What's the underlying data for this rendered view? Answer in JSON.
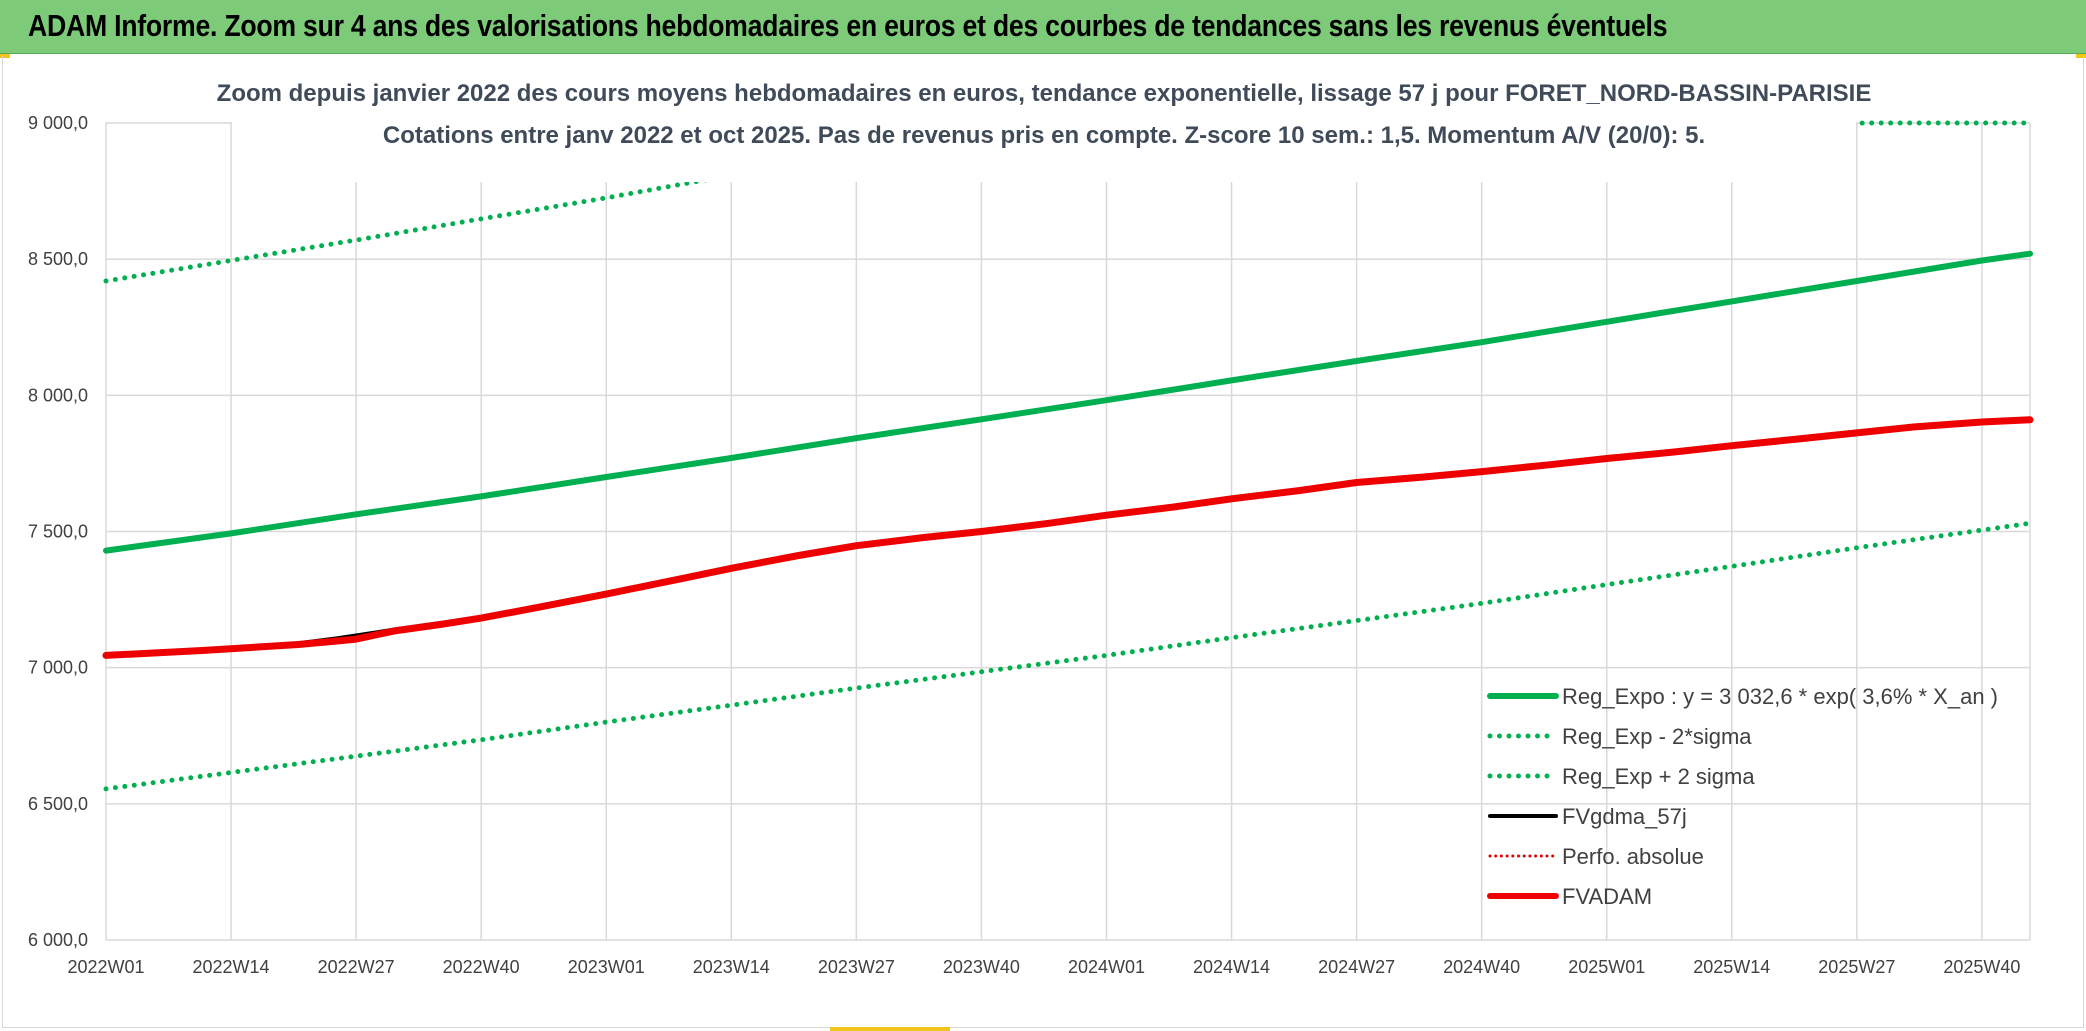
{
  "banner": {
    "title": "ADAM Informe. Zoom sur 4 ans des valorisations hebdomadaires en euros et des courbes de tendances sans les revenus éventuels"
  },
  "chart_data": {
    "type": "line",
    "title": "Zoom depuis janvier 2022 des cours moyens hebdomadaires en euros, tendance exponentielle, lissage 57 j pour FORET_NORD-BASSIN-PARISIE",
    "subtitle": "Cotations entre janv 2022 et oct 2025. Pas de revenus pris en compte. Z-score 10 sem.: 1,5. Momentum A/V (20/0): 5.",
    "xlabel": "",
    "ylabel": "",
    "ylim": [
      6000,
      9000
    ],
    "yticks": [
      "6 000,0",
      "6 500,0",
      "7 000,0",
      "7 500,0",
      "8 000,0",
      "8 500,0",
      "9 000,0"
    ],
    "ytick_values": [
      6000,
      6500,
      7000,
      7500,
      8000,
      8500,
      9000
    ],
    "categories": [
      "2022W01",
      "2022W14",
      "2022W27",
      "2022W40",
      "2023W01",
      "2023W14",
      "2023W27",
      "2023W40",
      "2024W01",
      "2024W14",
      "2024W27",
      "2024W40",
      "2025W01",
      "2025W14",
      "2025W27",
      "2025W40"
    ],
    "x_extent_weeks": 200,
    "grid": true,
    "legend_position": "bottom-right",
    "series": [
      {
        "name": "Reg_Expo : y = 3 032,6 * exp( 3,6% *  X_an )",
        "style": "solid",
        "color": "#00b050",
        "width": 6,
        "x": [
          0,
          13,
          26,
          39,
          52,
          65,
          78,
          91,
          104,
          117,
          130,
          143,
          156,
          169,
          182,
          195,
          200
        ],
        "values": [
          7430,
          7493,
          7563,
          7629,
          7700,
          7770,
          7843,
          7912,
          7982,
          8055,
          8126,
          8195,
          8270,
          8345,
          8420,
          8495,
          8520
        ]
      },
      {
        "name": "Reg_Exp - 2*sigma",
        "style": "dotted",
        "color": "#00b050",
        "width": 5,
        "x": [
          0,
          13,
          26,
          39,
          52,
          65,
          78,
          91,
          104,
          117,
          130,
          143,
          156,
          169,
          182,
          195,
          200
        ],
        "values": [
          6555,
          6615,
          6675,
          6735,
          6800,
          6862,
          6925,
          6985,
          7045,
          7110,
          7173,
          7236,
          7305,
          7372,
          7440,
          7505,
          7530
        ]
      },
      {
        "name": "Reg_Exp + 2 sigma",
        "style": "dotted",
        "color": "#00b050",
        "width": 5,
        "x": [
          0,
          13,
          26,
          39,
          52,
          65,
          72,
          183,
          200
        ],
        "values": [
          8420,
          8495,
          8570,
          8648,
          8725,
          8808,
          8855,
          9000,
          9000
        ]
      },
      {
        "name": "FVgdma_57j",
        "style": "solid",
        "color": "#000000",
        "width": 4,
        "x": [
          0,
          10,
          20,
          24,
          26,
          30,
          35,
          39,
          45,
          52,
          60,
          65,
          72,
          78,
          85,
          91,
          98,
          104,
          111,
          117,
          124,
          130,
          137,
          143,
          150,
          156,
          163,
          169,
          176,
          182,
          188,
          195,
          200
        ],
        "values": [
          7045,
          7065,
          7090,
          7108,
          7118,
          7140,
          7165,
          7185,
          7225,
          7272,
          7330,
          7368,
          7415,
          7445,
          7478,
          7502,
          7530,
          7560,
          7590,
          7620,
          7650,
          7680,
          7700,
          7720,
          7745,
          7770,
          7793,
          7815,
          7840,
          7863,
          7885,
          7903,
          7908
        ]
      },
      {
        "name": "Perfo. absolue",
        "style": "dotted",
        "color": "#e00000",
        "width": 3,
        "x": [],
        "values": []
      },
      {
        "name": "FVADAM",
        "style": "solid",
        "color": "#ee0000",
        "width": 7,
        "x": [
          0,
          10,
          20,
          24,
          26,
          30,
          35,
          39,
          45,
          52,
          60,
          65,
          72,
          78,
          85,
          91,
          98,
          104,
          111,
          117,
          124,
          130,
          137,
          143,
          150,
          156,
          163,
          169,
          176,
          182,
          188,
          195,
          200
        ],
        "values": [
          7045,
          7063,
          7085,
          7098,
          7105,
          7135,
          7160,
          7182,
          7222,
          7270,
          7328,
          7365,
          7412,
          7448,
          7478,
          7500,
          7530,
          7560,
          7590,
          7620,
          7650,
          7680,
          7700,
          7720,
          7745,
          7768,
          7792,
          7815,
          7840,
          7862,
          7884,
          7902,
          7910
        ]
      }
    ]
  }
}
